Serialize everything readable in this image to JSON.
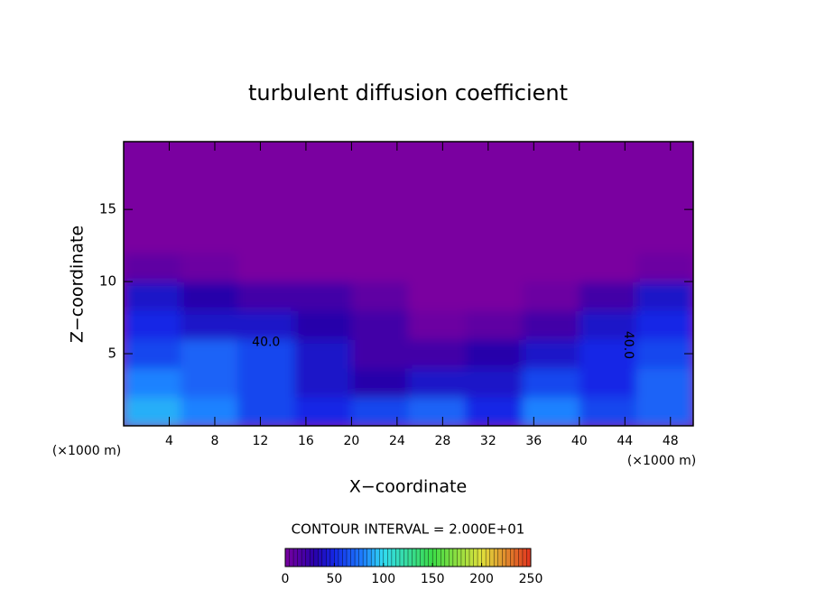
{
  "chart_data": {
    "type": "heatmap",
    "title": "turbulent diffusion coefficient",
    "x_label": "X−coordinate",
    "y_label": "Z−coordinate",
    "x_unit": "(×1000 m)",
    "note": "CONTOUR INTERVAL = 2.000E+01",
    "xlim": [
      0,
      50
    ],
    "ylim": [
      0,
      19.7
    ],
    "xticks": [
      4,
      8,
      12,
      16,
      20,
      24,
      28,
      32,
      36,
      40,
      44,
      48
    ],
    "yticks": [
      5,
      10,
      15
    ],
    "xbins": [
      0,
      5,
      10,
      15,
      20,
      25,
      30,
      35,
      40,
      45,
      50
    ],
    "ybins": [
      0,
      2,
      4,
      6,
      8,
      10,
      12,
      14,
      16,
      18,
      20
    ],
    "z": [
      [
        90,
        80,
        60,
        50,
        60,
        70,
        50,
        80,
        60,
        70
      ],
      [
        80,
        70,
        60,
        40,
        30,
        40,
        40,
        60,
        50,
        70
      ],
      [
        60,
        70,
        60,
        40,
        20,
        20,
        30,
        40,
        50,
        60
      ],
      [
        50,
        40,
        40,
        30,
        20,
        5,
        10,
        20,
        40,
        50
      ],
      [
        40,
        30,
        20,
        20,
        10,
        0,
        0,
        5,
        20,
        40
      ],
      [
        10,
        5,
        0,
        0,
        0,
        0,
        0,
        0,
        0,
        5
      ],
      [
        0,
        0,
        0,
        0,
        0,
        0,
        0,
        0,
        0,
        0
      ],
      [
        0,
        0,
        0,
        0,
        0,
        0,
        0,
        0,
        0,
        0
      ],
      [
        0,
        0,
        0,
        0,
        0,
        0,
        0,
        0,
        0,
        0
      ],
      [
        0,
        0,
        0,
        0,
        0,
        0,
        0,
        0,
        0,
        0
      ]
    ],
    "annotations": [
      {
        "text": "40.0",
        "x": 12.5,
        "y": 5.8,
        "rotation": 0
      },
      {
        "text": "40.0",
        "x": 44.3,
        "y": 5.6,
        "rotation": 90
      }
    ],
    "colorbar_lim": [
      0,
      250
    ],
    "colorbar_ticks": [
      0,
      50,
      100,
      150,
      200,
      250
    ]
  }
}
